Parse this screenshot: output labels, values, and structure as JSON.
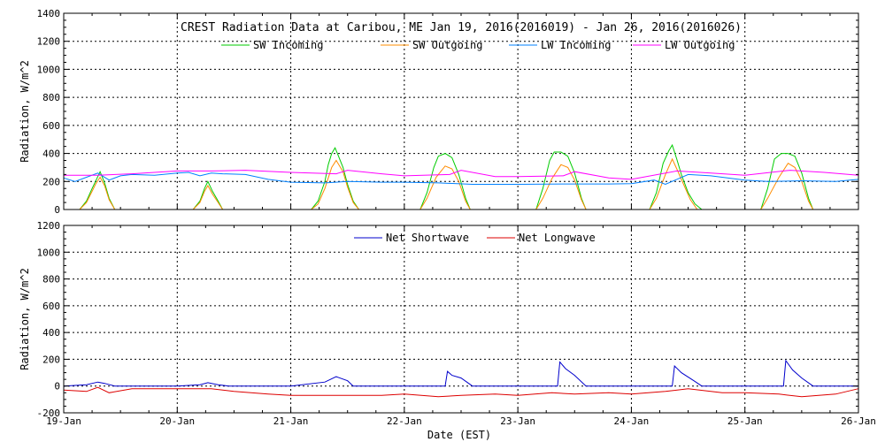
{
  "chart_data": [
    {
      "type": "line",
      "title": "CREST Radiation Data at Caribou, ME   Jan 19, 2016(2016019) - Jan 26, 2016(2016026)",
      "xlabel": "",
      "ylabel": "Radiation, W/m^2",
      "xlim": [
        "2016-01-19",
        "2016-01-26"
      ],
      "ylim": [
        0,
        1400
      ],
      "yticks": [
        "0",
        "200",
        "400",
        "600",
        "800",
        "1000",
        "1200",
        "1400"
      ],
      "grid": true,
      "legend_position": "top",
      "series": [
        {
          "name": "SW Incoming",
          "color": "#00cc00",
          "unit_x": "day offset from 19-Jan",
          "points": [
            [
              0.0,
              0
            ],
            [
              0.14,
              0
            ],
            [
              0.2,
              60
            ],
            [
              0.25,
              150
            ],
            [
              0.28,
              200
            ],
            [
              0.32,
              270
            ],
            [
              0.36,
              190
            ],
            [
              0.4,
              80
            ],
            [
              0.45,
              0
            ],
            [
              0.5,
              0
            ],
            [
              1.0,
              0
            ],
            [
              1.14,
              0
            ],
            [
              1.2,
              60
            ],
            [
              1.24,
              150
            ],
            [
              1.27,
              200
            ],
            [
              1.31,
              130
            ],
            [
              1.36,
              60
            ],
            [
              1.4,
              0
            ],
            [
              2.0,
              0
            ],
            [
              2.18,
              0
            ],
            [
              2.24,
              60
            ],
            [
              2.3,
              200
            ],
            [
              2.33,
              320
            ],
            [
              2.36,
              400
            ],
            [
              2.39,
              440
            ],
            [
              2.42,
              380
            ],
            [
              2.46,
              300
            ],
            [
              2.5,
              180
            ],
            [
              2.55,
              60
            ],
            [
              2.6,
              0
            ],
            [
              3.0,
              0
            ],
            [
              3.14,
              0
            ],
            [
              3.2,
              120
            ],
            [
              3.26,
              300
            ],
            [
              3.3,
              380
            ],
            [
              3.36,
              400
            ],
            [
              3.42,
              370
            ],
            [
              3.48,
              250
            ],
            [
              3.54,
              80
            ],
            [
              3.58,
              0
            ],
            [
              4.0,
              0
            ],
            [
              4.16,
              0
            ],
            [
              4.22,
              150
            ],
            [
              4.28,
              350
            ],
            [
              4.32,
              410
            ],
            [
              4.38,
              410
            ],
            [
              4.44,
              380
            ],
            [
              4.5,
              260
            ],
            [
              4.56,
              80
            ],
            [
              4.6,
              0
            ],
            [
              5.0,
              0
            ],
            [
              5.16,
              0
            ],
            [
              5.22,
              120
            ],
            [
              5.28,
              330
            ],
            [
              5.33,
              420
            ],
            [
              5.36,
              460
            ],
            [
              5.4,
              360
            ],
            [
              5.44,
              250
            ],
            [
              5.5,
              120
            ],
            [
              5.56,
              40
            ],
            [
              5.62,
              0
            ],
            [
              6.0,
              0
            ],
            [
              6.14,
              0
            ],
            [
              6.2,
              150
            ],
            [
              6.26,
              360
            ],
            [
              6.32,
              400
            ],
            [
              6.38,
              400
            ],
            [
              6.44,
              380
            ],
            [
              6.5,
              260
            ],
            [
              6.56,
              80
            ],
            [
              6.6,
              0
            ],
            [
              7.0,
              0
            ]
          ]
        },
        {
          "name": "SW Outgoing",
          "color": "#ff8c00",
          "unit_x": "day offset from 19-Jan",
          "points": [
            [
              0.0,
              0
            ],
            [
              0.14,
              0
            ],
            [
              0.2,
              50
            ],
            [
              0.25,
              130
            ],
            [
              0.28,
              180
            ],
            [
              0.32,
              230
            ],
            [
              0.36,
              170
            ],
            [
              0.4,
              70
            ],
            [
              0.45,
              0
            ],
            [
              0.5,
              0
            ],
            [
              1.0,
              0
            ],
            [
              1.14,
              0
            ],
            [
              1.2,
              50
            ],
            [
              1.24,
              130
            ],
            [
              1.27,
              170
            ],
            [
              1.31,
              110
            ],
            [
              1.36,
              50
            ],
            [
              1.4,
              0
            ],
            [
              2.0,
              0
            ],
            [
              2.18,
              0
            ],
            [
              2.24,
              40
            ],
            [
              2.3,
              150
            ],
            [
              2.36,
              300
            ],
            [
              2.4,
              350
            ],
            [
              2.46,
              270
            ],
            [
              2.5,
              160
            ],
            [
              2.55,
              50
            ],
            [
              2.6,
              0
            ],
            [
              3.0,
              0
            ],
            [
              3.14,
              0
            ],
            [
              3.2,
              80
            ],
            [
              3.28,
              230
            ],
            [
              3.36,
              310
            ],
            [
              3.42,
              290
            ],
            [
              3.48,
              200
            ],
            [
              3.54,
              60
            ],
            [
              3.58,
              0
            ],
            [
              4.0,
              0
            ],
            [
              4.16,
              0
            ],
            [
              4.22,
              80
            ],
            [
              4.3,
              220
            ],
            [
              4.38,
              320
            ],
            [
              4.44,
              300
            ],
            [
              4.5,
              210
            ],
            [
              4.56,
              70
            ],
            [
              4.6,
              0
            ],
            [
              5.0,
              0
            ],
            [
              5.16,
              0
            ],
            [
              5.22,
              80
            ],
            [
              5.3,
              250
            ],
            [
              5.36,
              360
            ],
            [
              5.4,
              290
            ],
            [
              5.46,
              180
            ],
            [
              5.52,
              70
            ],
            [
              5.58,
              0
            ],
            [
              6.0,
              0
            ],
            [
              6.14,
              0
            ],
            [
              6.2,
              80
            ],
            [
              6.3,
              230
            ],
            [
              6.38,
              330
            ],
            [
              6.44,
              300
            ],
            [
              6.5,
              200
            ],
            [
              6.56,
              60
            ],
            [
              6.6,
              0
            ],
            [
              7.0,
              0
            ]
          ]
        },
        {
          "name": "LW Incoming",
          "color": "#0080ff",
          "unit_x": "day offset from 19-Jan",
          "points": [
            [
              0.0,
              225
            ],
            [
              0.1,
              200
            ],
            [
              0.2,
              230
            ],
            [
              0.3,
              260
            ],
            [
              0.4,
              210
            ],
            [
              0.5,
              240
            ],
            [
              0.6,
              250
            ],
            [
              0.8,
              245
            ],
            [
              1.0,
              260
            ],
            [
              1.1,
              265
            ],
            [
              1.2,
              240
            ],
            [
              1.3,
              260
            ],
            [
              1.4,
              255
            ],
            [
              1.6,
              250
            ],
            [
              1.8,
              215
            ],
            [
              2.0,
              195
            ],
            [
              2.3,
              190
            ],
            [
              2.5,
              200
            ],
            [
              2.8,
              195
            ],
            [
              3.0,
              195
            ],
            [
              3.3,
              190
            ],
            [
              3.6,
              180
            ],
            [
              4.0,
              180
            ],
            [
              4.4,
              182
            ],
            [
              4.8,
              182
            ],
            [
              5.0,
              185
            ],
            [
              5.2,
              210
            ],
            [
              5.3,
              180
            ],
            [
              5.5,
              250
            ],
            [
              5.7,
              240
            ],
            [
              6.0,
              210
            ],
            [
              6.2,
              200
            ],
            [
              6.5,
              205
            ],
            [
              6.8,
              200
            ],
            [
              7.0,
              215
            ]
          ]
        },
        {
          "name": "LW Outgoing",
          "color": "#ff00ff",
          "unit_x": "day offset from 19-Jan",
          "points": [
            [
              0.0,
              245
            ],
            [
              0.3,
              245
            ],
            [
              0.6,
              255
            ],
            [
              1.0,
              275
            ],
            [
              1.3,
              275
            ],
            [
              1.6,
              280
            ],
            [
              2.0,
              265
            ],
            [
              2.4,
              255
            ],
            [
              2.5,
              280
            ],
            [
              2.8,
              255
            ],
            [
              3.0,
              240
            ],
            [
              3.4,
              250
            ],
            [
              3.5,
              280
            ],
            [
              3.8,
              235
            ],
            [
              4.0,
              235
            ],
            [
              4.4,
              240
            ],
            [
              4.5,
              270
            ],
            [
              4.8,
              225
            ],
            [
              5.0,
              215
            ],
            [
              5.4,
              275
            ],
            [
              5.7,
              260
            ],
            [
              6.0,
              245
            ],
            [
              6.4,
              280
            ],
            [
              6.7,
              265
            ],
            [
              7.0,
              245
            ]
          ]
        }
      ]
    },
    {
      "type": "line",
      "title": "",
      "xlabel": "Date (EST)",
      "ylabel": "Radiation, W/m^2",
      "xlim": [
        "2016-01-19",
        "2016-01-26"
      ],
      "ylim": [
        -200,
        1200
      ],
      "yticks": [
        "-200",
        "0",
        "200",
        "400",
        "600",
        "800",
        "1000",
        "1200"
      ],
      "xticks": [
        "19-Jan",
        "20-Jan",
        "21-Jan",
        "22-Jan",
        "23-Jan",
        "24-Jan",
        "25-Jan",
        "26-Jan"
      ],
      "grid": true,
      "legend_position": "top",
      "series": [
        {
          "name": "Net Shortwave",
          "color": "#0000cc",
          "unit_x": "day offset from 19-Jan",
          "points": [
            [
              0.0,
              0
            ],
            [
              0.2,
              10
            ],
            [
              0.3,
              30
            ],
            [
              0.36,
              20
            ],
            [
              0.45,
              0
            ],
            [
              1.0,
              0
            ],
            [
              1.2,
              10
            ],
            [
              1.27,
              25
            ],
            [
              1.36,
              10
            ],
            [
              1.45,
              0
            ],
            [
              2.0,
              0
            ],
            [
              2.3,
              30
            ],
            [
              2.4,
              70
            ],
            [
              2.5,
              40
            ],
            [
              2.55,
              0
            ],
            [
              3.0,
              0
            ],
            [
              3.36,
              0
            ],
            [
              3.38,
              110
            ],
            [
              3.42,
              80
            ],
            [
              3.5,
              60
            ],
            [
              3.6,
              0
            ],
            [
              4.0,
              0
            ],
            [
              4.35,
              0
            ],
            [
              4.37,
              180
            ],
            [
              4.42,
              130
            ],
            [
              4.5,
              80
            ],
            [
              4.6,
              0
            ],
            [
              5.0,
              0
            ],
            [
              5.36,
              0
            ],
            [
              5.38,
              150
            ],
            [
              5.44,
              100
            ],
            [
              5.55,
              40
            ],
            [
              5.62,
              0
            ],
            [
              6.0,
              0
            ],
            [
              6.34,
              0
            ],
            [
              6.36,
              190
            ],
            [
              6.42,
              120
            ],
            [
              6.5,
              60
            ],
            [
              6.6,
              0
            ],
            [
              7.0,
              0
            ]
          ]
        },
        {
          "name": "Net Longwave",
          "color": "#dd0000",
          "unit_x": "day offset from 19-Jan",
          "points": [
            [
              0.0,
              -30
            ],
            [
              0.2,
              -40
            ],
            [
              0.3,
              -10
            ],
            [
              0.4,
              -50
            ],
            [
              0.6,
              -20
            ],
            [
              1.0,
              -20
            ],
            [
              1.3,
              -20
            ],
            [
              1.5,
              -40
            ],
            [
              1.8,
              -60
            ],
            [
              2.0,
              -70
            ],
            [
              2.3,
              -70
            ],
            [
              2.5,
              -70
            ],
            [
              2.8,
              -70
            ],
            [
              3.0,
              -60
            ],
            [
              3.3,
              -80
            ],
            [
              3.5,
              -70
            ],
            [
              3.8,
              -60
            ],
            [
              4.0,
              -70
            ],
            [
              4.3,
              -50
            ],
            [
              4.5,
              -60
            ],
            [
              4.8,
              -50
            ],
            [
              5.0,
              -60
            ],
            [
              5.3,
              -40
            ],
            [
              5.5,
              -20
            ],
            [
              5.8,
              -50
            ],
            [
              6.0,
              -50
            ],
            [
              6.3,
              -60
            ],
            [
              6.5,
              -80
            ],
            [
              6.8,
              -60
            ],
            [
              7.0,
              -20
            ]
          ]
        }
      ]
    }
  ]
}
